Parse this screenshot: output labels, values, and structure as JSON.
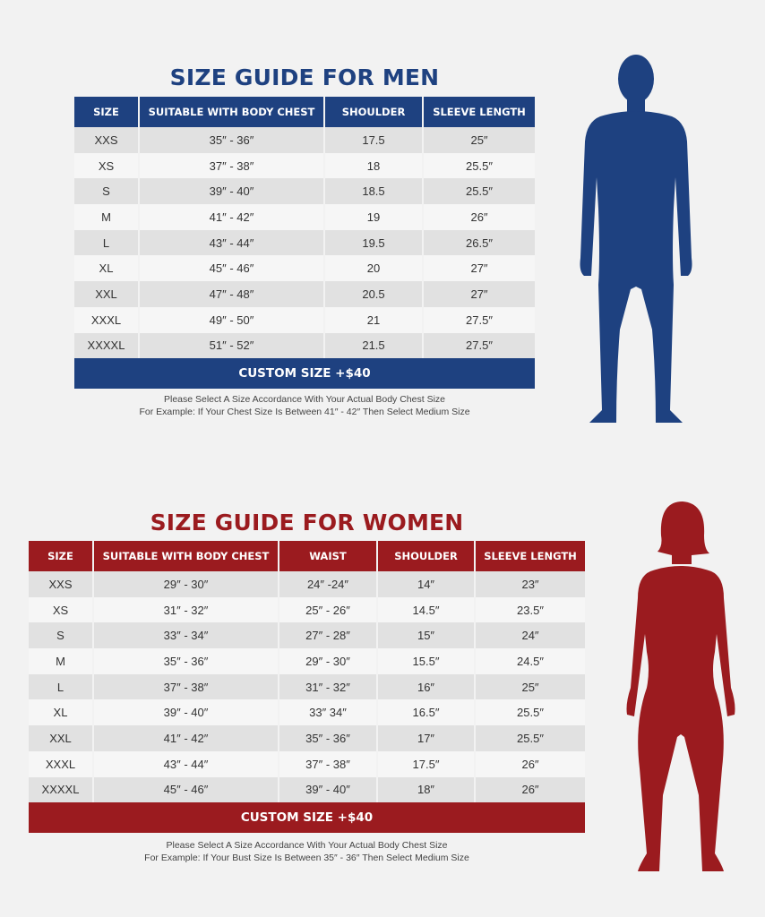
{
  "colors": {
    "men": "#1e4180",
    "women": "#9b1b1f",
    "row_dark": "#e1e1e1",
    "row_light": "#f6f6f6"
  },
  "men": {
    "title": "SIZE GUIDE FOR MEN",
    "headers": [
      "SIZE",
      "SUITABLE WITH BODY CHEST",
      "SHOULDER",
      "SLEEVE LENGTH"
    ],
    "rows": [
      [
        "XXS",
        "35″ - 36″",
        "17.5",
        "25″"
      ],
      [
        "XS",
        "37″ - 38″",
        "18",
        "25.5″"
      ],
      [
        "S",
        "39″ - 40″",
        "18.5",
        "25.5″"
      ],
      [
        "M",
        "41″ - 42″",
        "19",
        "26″"
      ],
      [
        "L",
        "43″ - 44″",
        "19.5",
        "26.5″"
      ],
      [
        "XL",
        "45″ - 46″",
        "20",
        "27″"
      ],
      [
        "XXL",
        "47″ - 48″",
        "20.5",
        "27″"
      ],
      [
        "XXXL",
        "49″ - 50″",
        "21",
        "27.5″"
      ],
      [
        "XXXXL",
        "51″ - 52″",
        "21.5",
        "27.5″"
      ]
    ],
    "custom": "CUSTOM SIZE +$40",
    "note_line1": "Please Select A Size Accordance With Your Actual Body Chest Size",
    "note_line2": "For Example: If Your Chest Size Is Between 41″ - 42″ Then Select Medium Size",
    "figure_icon": "male-silhouette"
  },
  "women": {
    "title": "SIZE GUIDE FOR WOMEN",
    "headers": [
      "SIZE",
      "SUITABLE WITH BODY CHEST",
      "WAIST",
      "SHOULDER",
      "SLEEVE LENGTH"
    ],
    "rows": [
      [
        "XXS",
        "29″ - 30″",
        "24″ -24″",
        "14″",
        "23″"
      ],
      [
        "XS",
        "31″ - 32″",
        "25″ - 26″",
        "14.5″",
        "23.5″"
      ],
      [
        "S",
        "33″ - 34″",
        "27″ - 28″",
        "15″",
        "24″"
      ],
      [
        "M",
        "35″ - 36″",
        "29″ - 30″",
        "15.5″",
        "24.5″"
      ],
      [
        "L",
        "37″ - 38″",
        "31″ - 32″",
        "16″",
        "25″"
      ],
      [
        "XL",
        "39″ - 40″",
        "33″ 34″",
        "16.5″",
        "25.5″"
      ],
      [
        "XXL",
        "41″ - 42″",
        "35″ - 36″",
        "17″",
        "25.5″"
      ],
      [
        "XXXL",
        "43″ - 44″",
        "37″ - 38″",
        "17.5″",
        "26″"
      ],
      [
        "XXXXL",
        "45″ - 46″",
        "39″ - 40″",
        "18″",
        "26″"
      ]
    ],
    "custom": "CUSTOM SIZE +$40",
    "note_line1": "Please Select A Size Accordance With Your Actual Body Chest Size",
    "note_line2": "For Example: If Your Bust Size Is Between 35″ - 36″ Then Select Medium Size",
    "figure_icon": "female-silhouette"
  }
}
